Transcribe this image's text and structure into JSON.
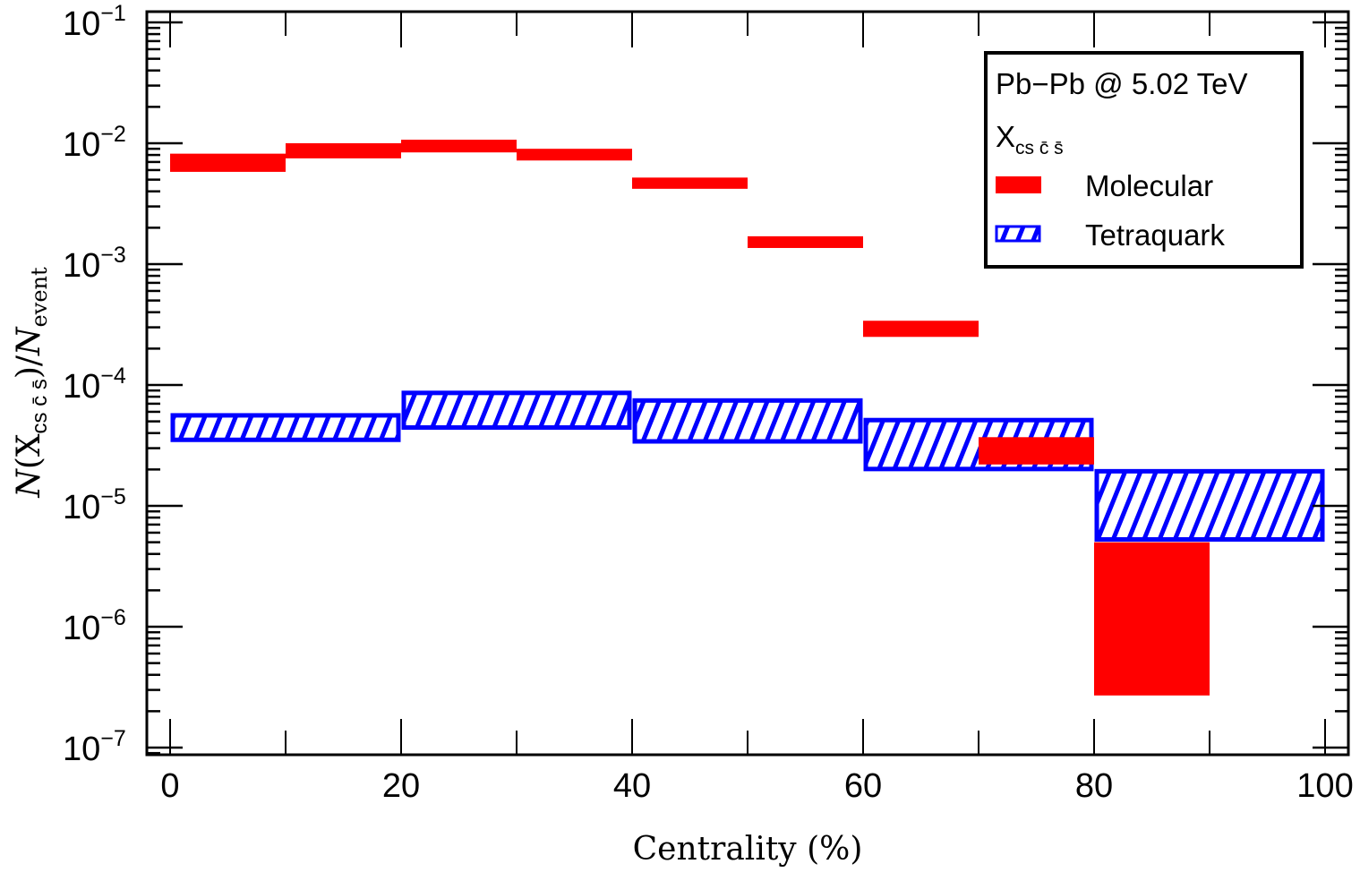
{
  "chart_data": {
    "type": "bar",
    "title": "",
    "xlabel": "Centrality (%)",
    "ylabel": {
      "N": "N",
      "open": "(X",
      "sub": "cs c̄ s̄",
      "close": ")/",
      "N2": "N",
      "sub2": "event"
    },
    "xlim": [
      -2,
      102
    ],
    "ylim": [
      1e-07,
      0.1
    ],
    "yscale": "log",
    "x_ticks": [
      "0",
      "20",
      "40",
      "60",
      "80",
      "100"
    ],
    "x_tick_values": [
      0,
      20,
      40,
      60,
      80,
      100
    ],
    "y_ticks": [
      {
        "base": "10",
        "exp": "−1",
        "value": 0.1
      },
      {
        "base": "10",
        "exp": "−2",
        "value": 0.01
      },
      {
        "base": "10",
        "exp": "−3",
        "value": 0.001
      },
      {
        "base": "10",
        "exp": "−4",
        "value": 0.0001
      },
      {
        "base": "10",
        "exp": "−5",
        "value": 1e-05
      },
      {
        "base": "10",
        "exp": "−6",
        "value": 1e-06
      },
      {
        "base": "10",
        "exp": "−7",
        "value": 1e-07
      }
    ],
    "legend": {
      "position": "top-right",
      "header": "Pb−Pb @ 5.02 TeV",
      "particle": "X",
      "particle_sub": "cs c̄ s̄",
      "entries": [
        {
          "label": "Molecular",
          "style": "solid",
          "color": "#ff0000"
        },
        {
          "label": "Tetraquark",
          "style": "hatched",
          "color": "#0000ff"
        }
      ]
    },
    "series": [
      {
        "name": "Molecular",
        "color": "#ff0000",
        "style": "solid",
        "bins": [
          {
            "x0": 0,
            "x1": 10,
            "low": 0.0058,
            "high": 0.0082
          },
          {
            "x0": 10,
            "x1": 20,
            "low": 0.0075,
            "high": 0.01
          },
          {
            "x0": 20,
            "x1": 30,
            "low": 0.0084,
            "high": 0.0107
          },
          {
            "x0": 30,
            "x1": 40,
            "low": 0.0072,
            "high": 0.009
          },
          {
            "x0": 40,
            "x1": 50,
            "low": 0.0042,
            "high": 0.0052
          },
          {
            "x0": 50,
            "x1": 60,
            "low": 0.00136,
            "high": 0.0017
          },
          {
            "x0": 60,
            "x1": 70,
            "low": 0.00025,
            "high": 0.00034
          },
          {
            "x0": 70,
            "x1": 80,
            "low": 2.2e-05,
            "high": 3.7e-05
          },
          {
            "x0": 80,
            "x1": 90,
            "low": 2.7e-07,
            "high": 5e-06
          }
        ]
      },
      {
        "name": "Tetraquark",
        "color": "#0000ff",
        "style": "hatched",
        "bins": [
          {
            "x0": 0,
            "x1": 20,
            "low": 3.4e-05,
            "high": 5.8e-05
          },
          {
            "x0": 20,
            "x1": 40,
            "low": 4.3e-05,
            "high": 8.9e-05
          },
          {
            "x0": 40,
            "x1": 60,
            "low": 3.3e-05,
            "high": 7.7e-05
          },
          {
            "x0": 60,
            "x1": 80,
            "low": 1.95e-05,
            "high": 5.3e-05
          },
          {
            "x0": 80,
            "x1": 100,
            "low": 5.1e-06,
            "high": 2e-05
          }
        ]
      }
    ],
    "grid": false
  }
}
